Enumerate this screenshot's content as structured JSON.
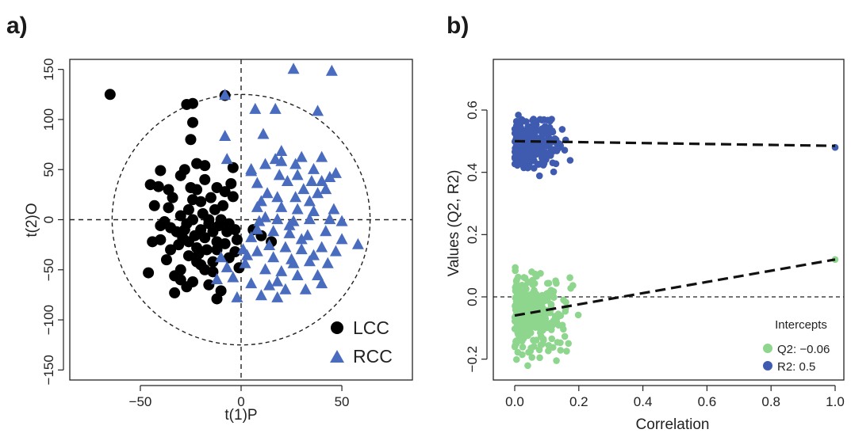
{
  "chart_data": [
    {
      "panel": "a)",
      "type": "scatter",
      "xlabel": "t(1)P",
      "ylabel": "t(2)O",
      "xlim": [
        -85,
        85
      ],
      "ylim": [
        -160,
        160
      ],
      "xticks": [
        -50,
        0,
        50
      ],
      "yticks": [
        -150,
        -100,
        -50,
        0,
        50,
        100,
        150
      ],
      "grid": false,
      "reference_lines": {
        "x": 0,
        "y": 0,
        "style": "dashed"
      },
      "confidence_ellipse": {
        "cx": 0,
        "cy": 0,
        "rx": 64,
        "ry": 125,
        "style": "dashed"
      },
      "legend": {
        "position": "bottom-right"
      },
      "series": [
        {
          "name": "LCC",
          "marker": "circle",
          "color": "#000000",
          "points": [
            [
              -65,
              125
            ],
            [
              -27,
              115
            ],
            [
              -24,
              116
            ],
            [
              -8,
              124
            ],
            [
              -24,
              97
            ],
            [
              -25,
              80
            ],
            [
              -45,
              35
            ],
            [
              -41,
              33
            ],
            [
              -40,
              49
            ],
            [
              -36,
              30
            ],
            [
              -43,
              14
            ],
            [
              -36,
              12
            ],
            [
              -38,
              -2
            ],
            [
              -46,
              -53
            ],
            [
              -33,
              -56
            ],
            [
              -33,
              -73
            ],
            [
              -27,
              -67
            ],
            [
              -24,
              -62
            ],
            [
              -16,
              -65
            ],
            [
              -12,
              -79
            ],
            [
              -10,
              -71
            ],
            [
              -30,
              -50
            ],
            [
              -20,
              -45
            ],
            [
              -14,
              -42
            ],
            [
              -6,
              -38
            ],
            [
              -8,
              -24
            ],
            [
              -12,
              -30
            ],
            [
              -3,
              -10
            ],
            [
              -4,
              23
            ],
            [
              -8,
              28
            ],
            [
              -4,
              52
            ],
            [
              -5,
              36
            ],
            [
              -30,
              44
            ],
            [
              -28,
              50
            ],
            [
              -22,
              56
            ],
            [
              -18,
              54
            ],
            [
              -25,
              32
            ],
            [
              -22,
              30
            ],
            [
              -18,
              40
            ],
            [
              -20,
              18
            ],
            [
              -15,
              22
            ],
            [
              -13,
              10
            ],
            [
              -10,
              0
            ],
            [
              -26,
              10
            ],
            [
              -24,
              0
            ],
            [
              -28,
              -10
            ],
            [
              -31,
              -25
            ],
            [
              -35,
              -30
            ],
            [
              -37,
              -40
            ],
            [
              -40,
              -20
            ],
            [
              -44,
              -22
            ],
            [
              -40,
              -6
            ],
            [
              -26,
              -22
            ],
            [
              -22,
              -28
            ],
            [
              -20,
              -10
            ],
            [
              -18,
              -18
            ],
            [
              -16,
              0
            ],
            [
              -14,
              -12
            ],
            [
              -12,
              -22
            ],
            [
              -6,
              -4
            ],
            [
              -2,
              -20
            ],
            [
              -1,
              -48
            ],
            [
              6,
              -10
            ],
            [
              10,
              -16
            ],
            [
              15,
              -22
            ],
            [
              -24,
              20
            ],
            [
              -26,
              -36
            ],
            [
              -21,
              -34
            ],
            [
              -17,
              -30
            ],
            [
              -14,
              -52
            ],
            [
              -30,
              -60
            ],
            [
              -35,
              -8
            ],
            [
              -12,
              32
            ],
            [
              -9,
              14
            ],
            [
              -34,
              22
            ],
            [
              -30,
              4
            ],
            [
              -16,
              -4
            ],
            [
              -23,
              -16
            ],
            [
              -27,
              -4
            ],
            [
              -19,
              6
            ],
            [
              -11,
              -6
            ],
            [
              -7,
              -12
            ],
            [
              -29,
              -18
            ],
            [
              -32,
              -12
            ],
            [
              -18,
              -50
            ],
            [
              -22,
              -42
            ],
            [
              -3,
              -32
            ]
          ]
        },
        {
          "name": "RCC",
          "marker": "triangle",
          "color": "#4a6cbf",
          "points": [
            [
              26,
              150
            ],
            [
              45,
              148
            ],
            [
              -8,
              124
            ],
            [
              7,
              110
            ],
            [
              17,
              110
            ],
            [
              38,
              108
            ],
            [
              11,
              85
            ],
            [
              40,
              62
            ],
            [
              30,
              62
            ],
            [
              17,
              60
            ],
            [
              20,
              68
            ],
            [
              27,
              55
            ],
            [
              36,
              50
            ],
            [
              44,
              42
            ],
            [
              12,
              55
            ],
            [
              5,
              50
            ],
            [
              19,
              44
            ],
            [
              28,
              44
            ],
            [
              35,
              38
            ],
            [
              40,
              38
            ],
            [
              -7,
              60
            ],
            [
              -8,
              83
            ],
            [
              5,
              48
            ],
            [
              8,
              36
            ],
            [
              23,
              38
            ],
            [
              31,
              30
            ],
            [
              42,
              30
            ],
            [
              47,
              46
            ],
            [
              38,
              26
            ],
            [
              13,
              26
            ],
            [
              18,
              22
            ],
            [
              27,
              22
            ],
            [
              34,
              18
            ],
            [
              8,
              12
            ],
            [
              20,
              12
            ],
            [
              28,
              10
            ],
            [
              36,
              8
            ],
            [
              46,
              10
            ],
            [
              12,
              2
            ],
            [
              18,
              0
            ],
            [
              26,
              -2
            ],
            [
              34,
              0
            ],
            [
              44,
              0
            ],
            [
              50,
              -2
            ],
            [
              58,
              -25
            ],
            [
              8,
              -10
            ],
            [
              16,
              -12
            ],
            [
              24,
              -14
            ],
            [
              33,
              -16
            ],
            [
              42,
              -12
            ],
            [
              50,
              -20
            ],
            [
              5,
              -18
            ],
            [
              14,
              -26
            ],
            [
              22,
              -28
            ],
            [
              30,
              -30
            ],
            [
              40,
              -28
            ],
            [
              47,
              -32
            ],
            [
              8,
              -32
            ],
            [
              16,
              -38
            ],
            [
              25,
              -40
            ],
            [
              34,
              -42
            ],
            [
              43,
              -44
            ],
            [
              2,
              -44
            ],
            [
              12,
              -50
            ],
            [
              20,
              -52
            ],
            [
              28,
              -56
            ],
            [
              38,
              -56
            ],
            [
              5,
              -64
            ],
            [
              14,
              -66
            ],
            [
              22,
              -70
            ],
            [
              32,
              -70
            ],
            [
              -2,
              -78
            ],
            [
              10,
              -76
            ],
            [
              18,
              -78
            ],
            [
              -7,
              -48
            ],
            [
              -12,
              -60
            ],
            [
              -10,
              -38
            ],
            [
              1,
              -30
            ],
            [
              -4,
              -58
            ],
            [
              24,
              -6
            ],
            [
              30,
              -20
            ],
            [
              9,
              -2
            ],
            [
              3,
              -36
            ],
            [
              26,
              -44
            ],
            [
              36,
              -36
            ],
            [
              18,
              -62
            ],
            [
              40,
              -64
            ],
            [
              20,
              58
            ],
            [
              10,
              18
            ]
          ]
        }
      ]
    },
    {
      "panel": "b)",
      "type": "scatter",
      "xlabel": "Correlation",
      "ylabel": "Values (Q2, R2)",
      "xlim": [
        0,
        1
      ],
      "ylim": [
        -0.25,
        0.65
      ],
      "xticks": [
        0.0,
        0.2,
        0.4,
        0.6,
        0.8,
        1.0
      ],
      "yticks": [
        -0.2,
        0.0,
        0.2,
        0.4,
        0.6
      ],
      "grid": false,
      "reference_lines": {
        "y": 0,
        "style": "dashed"
      },
      "legend": {
        "position": "bottom-right",
        "title": "Intercepts"
      },
      "series": [
        {
          "name": "Q2: −0.06",
          "color": "#8ed68e",
          "intercept": -0.06,
          "observed": [
            1.0,
            0.12
          ],
          "cluster": {
            "x_range": [
              0.0,
              0.22
            ],
            "y_range": [
              -0.23,
              0.13
            ],
            "n": 300
          },
          "fit_line": [
            [
              0.0,
              -0.06
            ],
            [
              1.0,
              0.12
            ]
          ]
        },
        {
          "name": "R2: 0.5",
          "color": "#3f5bb0",
          "intercept": 0.5,
          "observed": [
            1.0,
            0.48
          ],
          "cluster": {
            "x_range": [
              0.0,
              0.2
            ],
            "y_range": [
              0.37,
              0.6
            ],
            "n": 300
          },
          "fit_line": [
            [
              0.0,
              0.5
            ],
            [
              1.0,
              0.485
            ]
          ]
        }
      ]
    }
  ]
}
